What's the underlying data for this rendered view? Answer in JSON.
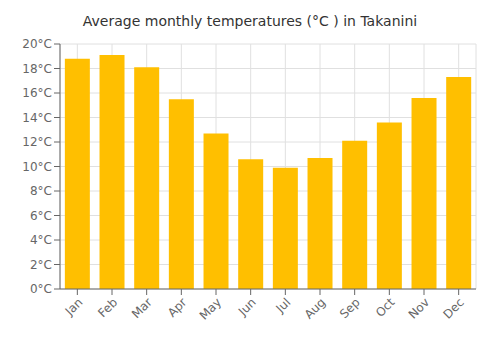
{
  "chart_data": {
    "type": "bar",
    "title": "Average monthly temperatures (°C ) in Takanini",
    "categories": [
      "Jan",
      "Feb",
      "Mar",
      "Apr",
      "May",
      "Jun",
      "Jul",
      "Aug",
      "Sep",
      "Oct",
      "Nov",
      "Dec"
    ],
    "values": [
      18.8,
      19.1,
      18.1,
      15.5,
      12.7,
      10.6,
      9.9,
      10.7,
      12.1,
      13.6,
      15.6,
      17.3
    ],
    "color": "#FFBF00",
    "ylim": [
      0,
      20
    ],
    "yticks": [
      {
        "value": 0,
        "label": "0°C"
      },
      {
        "value": 2,
        "label": "2°C"
      },
      {
        "value": 4,
        "label": "4°C"
      },
      {
        "value": 6,
        "label": "6°C"
      },
      {
        "value": 8,
        "label": "8°C"
      },
      {
        "value": 10,
        "label": "10°C"
      },
      {
        "value": 12,
        "label": "12°C"
      },
      {
        "value": 14,
        "label": "14°C"
      },
      {
        "value": 16,
        "label": "16°C"
      },
      {
        "value": 18,
        "label": "18°C"
      },
      {
        "value": 20,
        "label": "20°C"
      }
    ],
    "grid": true
  }
}
